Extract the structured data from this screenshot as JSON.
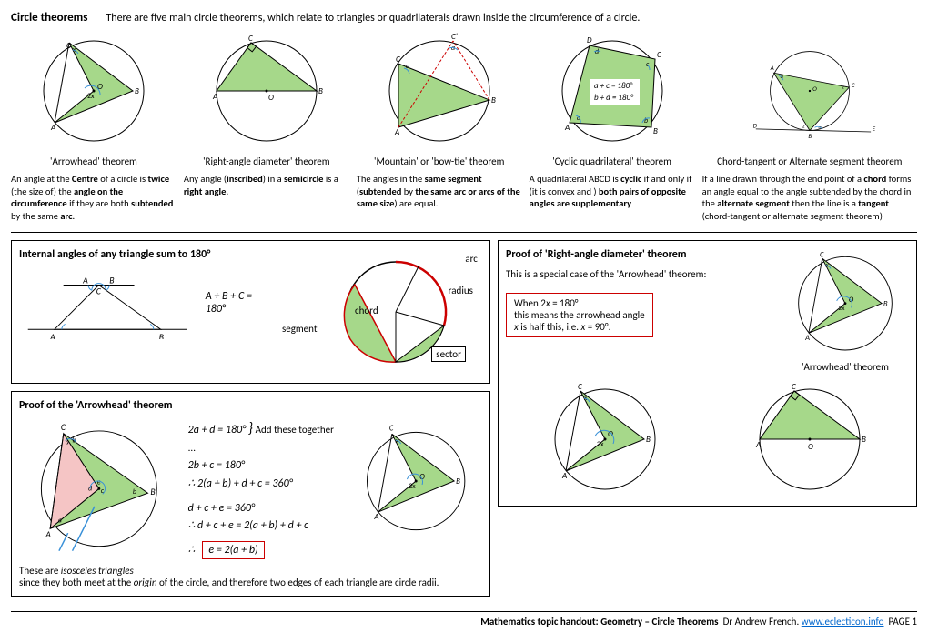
{
  "header": {
    "title": "Circle theorems",
    "subtitle": "There are five main circle theorems, which relate to triangles or quadrilaterals drawn inside the circumference of a circle."
  },
  "theorems": [
    {
      "name": "'Arrowhead' theorem",
      "desc": "An angle at the <b>Centre</b> of a circle is <b>twice</b> (the size of) the <b>angle on the circumference</b> if they are both <b>subtended</b> by the same <b>arc</b>."
    },
    {
      "name": "'Right-angle diameter' theorem",
      "desc": "Any angle (<b>inscribed</b>) in a <b>semicircle</b> is a <b>right angle.</b>"
    },
    {
      "name": "'Mountain' or 'bow-tie' theorem",
      "desc": "The angles in the <b>same segment</b> (<b>subtended</b> by <b>the same arc or arcs of the same size</b>) are equal."
    },
    {
      "name": "'Cyclic quadrilateral' theorem",
      "desc": "A quadrilateral ABCD is <b>cyclic</b> if and only if (it is convex and ) <b>both pairs of opposite angles are supplementary</b>"
    },
    {
      "name": "Chord-tangent or Alternate segment theorem",
      "desc": "If a line drawn through the end point of a <b>chord</b> forms an angle equal to the angle subtended by the chord in the <b>alternate segment</b> then the line is a <b>tangent</b> (chord-tangent or alternate segment theorem)"
    }
  ],
  "cyclicEq1": "a + c = 180°",
  "cyclicEq2": "b + d = 180°",
  "internalAngles": {
    "title": "Internal angles of any triangle sum to 180°",
    "formula": "A + B + C = 180°"
  },
  "arrowheadProof": {
    "title": "Proof of the 'Arrowhead' theorem",
    "eq1": "2a + d = 180°",
    "eq2": "2b + c = 180°",
    "addNote": "Add these together ...",
    "eq3": "∴ 2(a + b) + d + c = 360°",
    "eq4": "d + c + e = 360°",
    "eq5": "∴ d + c + e = 2(a + b) + d + c",
    "result": "e = 2(a + b)",
    "isosceles": "These are <i>isosceles triangles</i><br>since they both meet at the <i>origin</i> of the circle, and therefore two edges of each triangle are circle radii."
  },
  "parts": {
    "arc": "arc",
    "radius": "radius",
    "chord": "chord",
    "segment": "segment",
    "sector": "sector"
  },
  "rightAngleProof": {
    "title": "Proof of 'Right-angle diameter' theorem",
    "text": "This is a special case of the 'Arrowhead' theorem:",
    "box1": "When 2<i>x</i> = 180°",
    "box2": "this means the arrowhead angle",
    "box3": "<i>x</i> is half this, i.e. <i>x</i> = 90°.",
    "labelRight": "'Arrowhead' theorem"
  },
  "footer": {
    "prefix": "Mathematics topic handout: Geometry – Circle Theorems",
    "author": "Dr Andrew French.",
    "link": "www.eclecticon.info",
    "page": "PAGE 1"
  },
  "colors": {
    "fill": "#a6d88a",
    "pink": "#f5c5c5",
    "red": "#cc0000",
    "blue": "#3890d8"
  }
}
